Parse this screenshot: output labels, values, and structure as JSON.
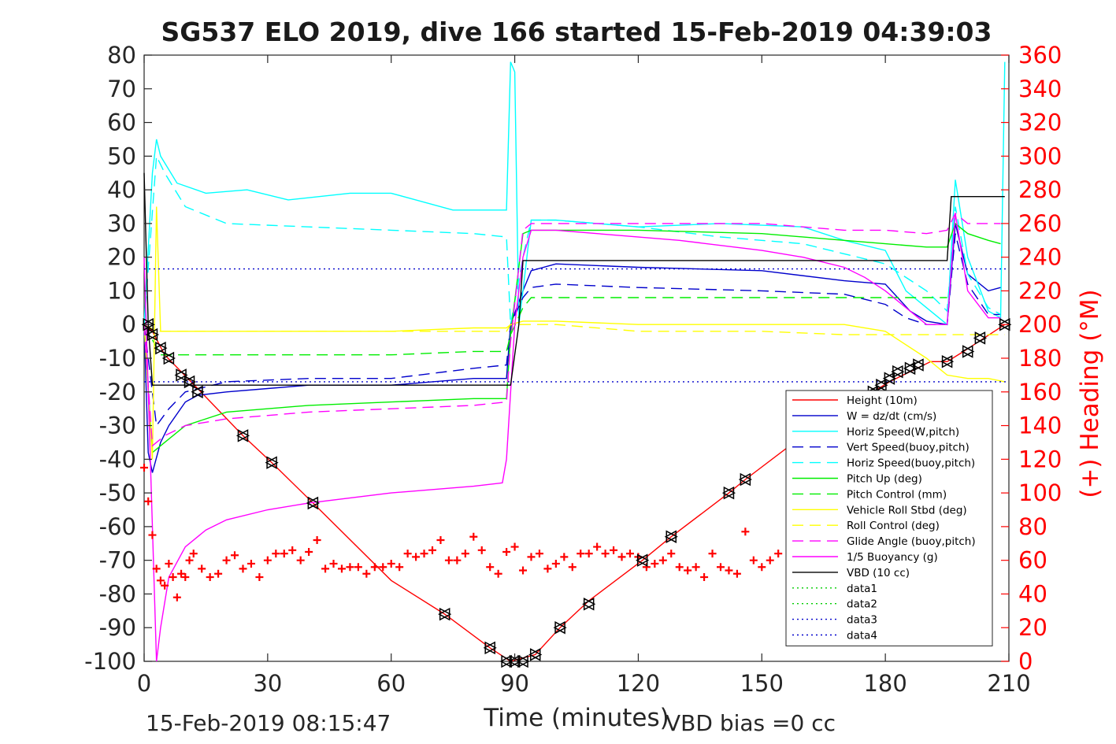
{
  "chart_data": {
    "type": "line",
    "title": "SG537 ELO 2019, dive 166 started 15-Feb-2019 04:39:03",
    "xlabel": "Time (minutes)",
    "ylabel": "",
    "y2label": "(+) Heading (°M)",
    "xlim": [
      0,
      210
    ],
    "ylim": [
      -100,
      80
    ],
    "y2lim": [
      0,
      360
    ],
    "xticks": [
      "0",
      "30",
      "60",
      "90",
      "120",
      "150",
      "180",
      "210"
    ],
    "yticks": [
      "80",
      "70",
      "60",
      "50",
      "40",
      "30",
      "20",
      "10",
      "0",
      "-10",
      "-20",
      "-30",
      "-40",
      "-50",
      "-60",
      "-70",
      "-80",
      "-90",
      "-100"
    ],
    "y2ticks": [
      "360",
      "340",
      "320",
      "300",
      "280",
      "260",
      "240",
      "220",
      "200",
      "180",
      "160",
      "140",
      "120",
      "100",
      "80",
      "60",
      "40",
      "20",
      "0"
    ],
    "footer_left": "15-Feb-2019 08:15:47",
    "footer_right": "VBD bias =0 cc",
    "legend_position": "lower-right",
    "grid": false,
    "series": [
      {
        "name": "Height (10m)",
        "color": "#ff0000",
        "style": "solid",
        "x": [
          0,
          2,
          5,
          13,
          24,
          31,
          41,
          60,
          73,
          84,
          89,
          92,
          95,
          101,
          108,
          121,
          128,
          142,
          146,
          160,
          177,
          181,
          186,
          191,
          195,
          199,
          204,
          209
        ],
        "y": [
          0,
          -2,
          -9,
          -19,
          -33,
          -41,
          -53,
          -76,
          -86,
          -96,
          -100,
          -99,
          -98,
          -90,
          -82,
          -70,
          -63,
          -50,
          -46,
          -33,
          -20,
          -17,
          -14,
          -11,
          -11,
          -8,
          -4,
          0
        ]
      },
      {
        "name": "W = dz/dt (cm/s)",
        "color": "#0000cc",
        "style": "solid",
        "x": [
          0,
          1,
          2,
          4,
          6,
          10,
          13,
          20,
          30,
          40,
          60,
          80,
          88,
          89,
          92,
          94,
          100,
          120,
          150,
          170,
          180,
          186,
          190,
          195,
          197,
          200,
          205,
          208
        ],
        "y": [
          0,
          -38,
          -44,
          -35,
          -30,
          -23,
          -21,
          -20,
          -19,
          -18,
          -18,
          -16,
          -16,
          0,
          10,
          16,
          18,
          17,
          16,
          13,
          12,
          4,
          1,
          0,
          30,
          15,
          10,
          11
        ]
      },
      {
        "name": "Horiz Speed(W,pitch)",
        "color": "#00ffff",
        "style": "solid",
        "x": [
          0,
          2,
          3,
          4,
          8,
          15,
          25,
          35,
          50,
          60,
          75,
          85,
          88,
          89,
          90,
          91,
          92,
          94,
          100,
          120,
          140,
          160,
          170,
          180,
          185,
          190,
          195,
          197,
          200,
          205,
          208,
          209
        ],
        "y": [
          0,
          45,
          55,
          50,
          42,
          39,
          40,
          37,
          39,
          39,
          34,
          34,
          34,
          78,
          75,
          0,
          10,
          31,
          31,
          29,
          30,
          29,
          25,
          22,
          10,
          5,
          0,
          43,
          20,
          4,
          2,
          78
        ]
      },
      {
        "name": "Vert Speed(buoy,pitch)",
        "color": "#0000cc",
        "style": "dashed",
        "x": [
          0,
          3,
          6,
          10,
          20,
          40,
          60,
          80,
          88,
          89,
          92,
          94,
          100,
          120,
          150,
          170,
          180,
          185,
          190,
          195,
          197,
          200,
          205,
          208
        ],
        "y": [
          0,
          -30,
          -25,
          -20,
          -17,
          -16,
          -16,
          -13,
          -12,
          0,
          8,
          11,
          12,
          11,
          10,
          9,
          6,
          2,
          0,
          0,
          27,
          12,
          3,
          3
        ]
      },
      {
        "name": "Horiz Speed(buoy,pitch)",
        "color": "#00ffff",
        "style": "dashed",
        "x": [
          0,
          3,
          5,
          10,
          20,
          40,
          60,
          80,
          88,
          89,
          92,
          94,
          100,
          120,
          140,
          160,
          180,
          190,
          195,
          197,
          200,
          205,
          208
        ],
        "y": [
          0,
          50,
          45,
          35,
          30,
          29,
          28,
          27,
          26,
          0,
          20,
          31,
          31,
          29,
          26,
          24,
          18,
          10,
          4,
          35,
          15,
          5,
          3
        ]
      },
      {
        "name": "Pitch Up (deg)",
        "color": "#00ee00",
        "style": "solid",
        "x": [
          0,
          2,
          5,
          10,
          20,
          40,
          60,
          80,
          88,
          89,
          92,
          94,
          100,
          120,
          150,
          170,
          180,
          190,
          195,
          197,
          200,
          205,
          208
        ],
        "y": [
          0,
          -38,
          -35,
          -30,
          -26,
          -24,
          -23,
          -22,
          -22,
          -3,
          27,
          28,
          28,
          28,
          27,
          25,
          24,
          23,
          23,
          30,
          27,
          25,
          24
        ]
      },
      {
        "name": "Pitch Control (mm)",
        "color": "#00ee00",
        "style": "dashed",
        "x": [
          0,
          4,
          20,
          40,
          60,
          80,
          88,
          89,
          92,
          94,
          100,
          120,
          150,
          170,
          180,
          195
        ],
        "y": [
          0,
          -9,
          -9,
          -9,
          -9,
          -8,
          -8,
          -3,
          5,
          8,
          8,
          8,
          8,
          8,
          8,
          8
        ]
      },
      {
        "name": "Vehicle Roll Stbd (deg)",
        "color": "#ffff00",
        "style": "solid",
        "x": [
          0,
          2,
          3,
          4,
          8,
          20,
          40,
          60,
          80,
          88,
          89,
          92,
          94,
          100,
          120,
          150,
          170,
          180,
          190,
          195,
          200,
          205,
          209
        ],
        "y": [
          0,
          -40,
          35,
          -2,
          -2,
          -2,
          -2,
          -2,
          -1,
          -1,
          0,
          1,
          1,
          1,
          0,
          0,
          0,
          -2,
          -10,
          -15,
          -16,
          -16,
          -17
        ]
      },
      {
        "name": "Roll Control (deg)",
        "color": "#ffff00",
        "style": "dashed",
        "x": [
          0,
          3,
          20,
          40,
          60,
          80,
          88,
          89,
          92,
          100,
          120,
          150,
          170,
          180,
          195,
          209
        ],
        "y": [
          0,
          -2,
          -2,
          -2,
          -2,
          -2,
          -2,
          0,
          0,
          0,
          -2,
          -2,
          -3,
          -3,
          -3,
          -3
        ]
      },
      {
        "name": "Glide Angle (buoy,pitch)",
        "color": "#ff00ff",
        "style": "dashed",
        "x": [
          0,
          2,
          5,
          10,
          20,
          40,
          60,
          80,
          88,
          89,
          92,
          94,
          100,
          120,
          150,
          170,
          180,
          190,
          195,
          197,
          200,
          205,
          208
        ],
        "y": [
          0,
          -36,
          -33,
          -30,
          -28,
          -26,
          -25,
          -24,
          -23,
          -5,
          28,
          30,
          30,
          30,
          30,
          28,
          28,
          27,
          28,
          33,
          30,
          30,
          30
        ]
      },
      {
        "name": "1/5 Buoyancy (g)",
        "color": "#ff00ff",
        "style": "solid",
        "x": [
          0,
          2,
          3,
          4,
          6,
          10,
          15,
          20,
          30,
          40,
          60,
          80,
          87,
          88,
          90,
          92,
          94,
          100,
          110,
          130,
          150,
          160,
          170,
          175,
          180,
          185,
          190,
          195,
          197,
          200,
          205,
          208
        ],
        "y": [
          20,
          -60,
          -100,
          -90,
          -75,
          -66,
          -61,
          -58,
          -55,
          -53,
          -50,
          -48,
          -47,
          -40,
          0,
          20,
          28,
          28,
          27,
          25,
          22,
          20,
          17,
          14,
          10,
          5,
          0,
          0,
          33,
          10,
          2,
          2
        ]
      },
      {
        "name": "VBD (10 cc)",
        "color": "#000000",
        "style": "solid",
        "x": [
          0,
          1,
          2,
          88,
          89,
          91,
          92,
          195,
          196,
          209
        ],
        "y": [
          45,
          0,
          -18,
          -18,
          -18,
          0,
          19,
          19,
          38,
          38
        ]
      },
      {
        "name": "data1",
        "color": "#00cc00",
        "style": "dotted",
        "x": [],
        "y": []
      },
      {
        "name": "data2",
        "color": "#00cc00",
        "style": "dotted",
        "x": [],
        "y": []
      },
      {
        "name": "data3",
        "color": "#0000cc",
        "style": "dotted",
        "x": [
          0,
          210
        ],
        "y": [
          16.5,
          16.5
        ]
      },
      {
        "name": "data4",
        "color": "#0000cc",
        "style": "dotted",
        "x": [
          0,
          210
        ],
        "y": [
          -17,
          -17
        ]
      }
    ],
    "heading": {
      "color": "#ff0000",
      "marker": "+",
      "axis": "right",
      "x": [
        0,
        1,
        2,
        3,
        4,
        5,
        6,
        7,
        8,
        9,
        10,
        11,
        12,
        14,
        16,
        18,
        20,
        22,
        24,
        26,
        28,
        30,
        32,
        34,
        36,
        38,
        40,
        42,
        44,
        46,
        48,
        50,
        52,
        54,
        56,
        58,
        60,
        62,
        64,
        66,
        68,
        70,
        72,
        74,
        76,
        78,
        80,
        82,
        84,
        86,
        88,
        90,
        92,
        94,
        96,
        98,
        100,
        102,
        104,
        106,
        108,
        110,
        112,
        114,
        116,
        118,
        120,
        122,
        124,
        126,
        128,
        130,
        132,
        134,
        136,
        138,
        140,
        142,
        144,
        146,
        148,
        150,
        152,
        154
      ],
      "y": [
        115,
        95,
        75,
        55,
        48,
        45,
        58,
        50,
        38,
        52,
        50,
        60,
        64,
        55,
        50,
        52,
        60,
        63,
        55,
        58,
        50,
        60,
        64,
        64,
        66,
        60,
        65,
        72,
        55,
        58,
        55,
        56,
        56,
        52,
        56,
        56,
        58,
        56,
        64,
        62,
        64,
        66,
        72,
        60,
        60,
        64,
        74,
        66,
        56,
        52,
        65,
        68,
        54,
        62,
        64,
        55,
        58,
        62,
        56,
        64,
        64,
        68,
        64,
        66,
        62,
        64,
        62,
        56,
        58,
        60,
        64,
        56,
        54,
        56,
        50,
        64,
        56,
        54,
        52,
        77,
        60,
        56,
        60,
        64
      ]
    },
    "markers": {
      "color": "#000000",
      "style": "triangles",
      "x": [
        1,
        2,
        4,
        6,
        9,
        11,
        13,
        24,
        31,
        41,
        73,
        84,
        88,
        90,
        92,
        95,
        101,
        108,
        121,
        128,
        142,
        146,
        177,
        179,
        181,
        183,
        186,
        188,
        195,
        200,
        203,
        209
      ],
      "y": [
        0,
        -3,
        -7,
        -10,
        -15,
        -17,
        -20,
        -33,
        -41,
        -53,
        -86,
        -96,
        -100,
        -100,
        -100,
        -98,
        -90,
        -83,
        -70,
        -63,
        -50,
        -46,
        -20,
        -18,
        -16,
        -14,
        -13,
        -12,
        -11,
        -8,
        -4,
        0
      ]
    }
  }
}
